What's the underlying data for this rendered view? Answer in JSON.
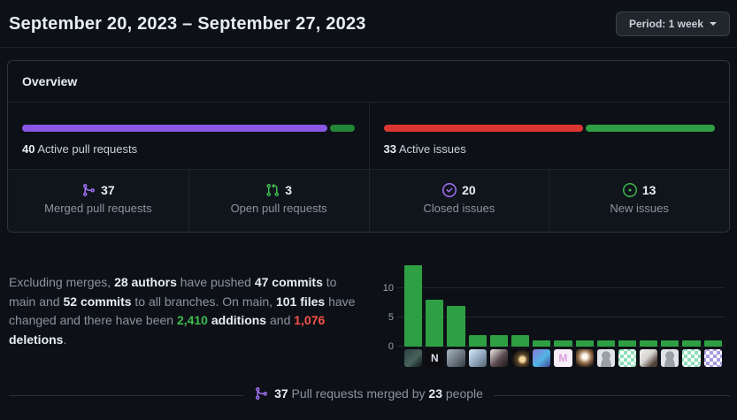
{
  "header": {
    "title": "September 20, 2023 – September 27, 2023",
    "period_button_label": "Period: 1 week"
  },
  "overview": {
    "title": "Overview",
    "pr_bar": {
      "count": "40",
      "label": "Active pull requests",
      "segments": [
        {
          "name": "merged",
          "color": "#8957e5",
          "pct": 92.5
        },
        {
          "name": "open",
          "color": "#238636",
          "pct": 7.5
        }
      ]
    },
    "issue_bar": {
      "count": "33",
      "label": "Active issues",
      "segments": [
        {
          "name": "closed",
          "color": "#da3633",
          "pct": 60.6
        },
        {
          "name": "new",
          "color": "#2ea043",
          "pct": 39.4
        }
      ]
    },
    "stats": [
      {
        "icon": "git-merge-icon",
        "color": "#a371f7",
        "value": "37",
        "label": "Merged pull requests"
      },
      {
        "icon": "git-pull-request-icon",
        "color": "#3fb950",
        "value": "3",
        "label": "Open pull requests"
      },
      {
        "icon": "issue-closed-icon",
        "color": "#a371f7",
        "value": "20",
        "label": "Closed issues"
      },
      {
        "icon": "issue-opened-icon",
        "color": "#3fb950",
        "value": "13",
        "label": "New issues"
      }
    ]
  },
  "summary": {
    "segments": [
      {
        "text": "Excluding merges, "
      },
      {
        "text": "28 authors",
        "bold": true
      },
      {
        "text": " have pushed "
      },
      {
        "text": "47 commits",
        "bold": true
      },
      {
        "text": " to main and "
      },
      {
        "text": "52 commits",
        "bold": true
      },
      {
        "text": " to all branches. On main, "
      },
      {
        "text": "101 files",
        "bold": true
      },
      {
        "text": " have changed and there have been "
      },
      {
        "text": "2,410",
        "bold": true,
        "color": "#3fb950"
      },
      {
        "text": " "
      },
      {
        "text": "additions",
        "bold": true
      },
      {
        "text": " and "
      },
      {
        "text": "1,076",
        "bold": true,
        "color": "#f85149"
      },
      {
        "text": " "
      },
      {
        "text": "deletions",
        "bold": true
      },
      {
        "text": "."
      }
    ]
  },
  "chart_data": {
    "type": "bar",
    "title": "",
    "xlabel": "",
    "ylabel": "",
    "categories": [
      "portrait-photo",
      "letter-N-logo",
      "gray-portrait-photo",
      "hooded-person-photo",
      "portrait-photo",
      "night-moon-photo",
      "person-colorful-hat",
      "pink-M-avatar",
      "bright-light-photo",
      "default-octocat",
      "green-identicon",
      "portrait-photo",
      "default-octocat",
      "green-identicon",
      "purple-identicon"
    ],
    "values": [
      14,
      8,
      7,
      2,
      2,
      2,
      1,
      1,
      1,
      1,
      1,
      1,
      1,
      1,
      1
    ],
    "yticks": [
      0,
      5,
      10
    ],
    "ylim": [
      0,
      15
    ],
    "grid": true,
    "bar_color": "#2ea043",
    "avatars": [
      {
        "name": "portrait-photo",
        "css": "linear-gradient(135deg,#2b3f44,#48645b 55%,#101619)"
      },
      {
        "name": "letter-N-logo",
        "css": "#0d0d10",
        "text": "N",
        "fg": "#d7dee8"
      },
      {
        "name": "gray-portrait-photo",
        "css": "linear-gradient(135deg,#aab6c2,#667079 60%,#343b41)"
      },
      {
        "name": "hooded-person-photo",
        "css": "linear-gradient(135deg,#dce9f5,#93abc2 50%,#51616f)"
      },
      {
        "name": "portrait-photo",
        "css": "linear-gradient(135deg,#f1ece7,#5a4a50 55%,#1a1416)"
      },
      {
        "name": "night-moon-photo",
        "css": "radial-gradient(circle at 62% 58%,#f5d9a0 0 16%,#5a4326 34%,#0b0b0e 72%)"
      },
      {
        "name": "person-colorful-hat",
        "css": "linear-gradient(135deg,#8a79d8,#53b5e4 55%,#41459a)"
      },
      {
        "name": "pink-M-avatar",
        "css": "#f7eef8",
        "text": "M",
        "fg": "#df9fdc"
      },
      {
        "name": "bright-light-photo",
        "css": "radial-gradient(circle at 50% 42%,#fdf8ec 0 18%,#96704d 48%,#241a14 82%)"
      },
      {
        "name": "default-octocat",
        "css": "radial-gradient(circle at 50% 36%,#9aa0a6 0 30%,transparent 31%),radial-gradient(ellipse at 50% 105%,#9aa0a6 0 42%,transparent 43%),#e1e4e8"
      },
      {
        "name": "green-identicon",
        "css": "conic-gradient(#8fe0b9 0 25%,transparent 0 50%,#8fe0b9 0 75%,transparent 0) 2px 2px/8px 8px repeat, #ffffff"
      },
      {
        "name": "portrait-photo",
        "css": "linear-gradient(135deg,#f2f2f2,#d6d4d2 45%,#514139 80%)"
      },
      {
        "name": "default-octocat",
        "css": "radial-gradient(circle at 50% 36%,#9aa0a6 0 30%,transparent 31%),radial-gradient(ellipse at 50% 105%,#9aa0a6 0 42%,transparent 43%),#e1e4e8"
      },
      {
        "name": "green-identicon",
        "css": "conic-gradient(#8fe0b9 0 25%,transparent 0 50%,#8fe0b9 0 75%,transparent 0) 2px 2px/8px 8px repeat, #ffffff"
      },
      {
        "name": "purple-identicon",
        "css": "conic-gradient(#a79ae2 0 25%,transparent 0 50%,#a79ae2 0 75%,transparent 0) 2px 2px/8px 8px repeat, #ffffff"
      }
    ]
  },
  "footer": {
    "segments": [
      {
        "text": "37",
        "bold": true
      },
      {
        "text": " Pull requests merged by "
      },
      {
        "text": "23",
        "bold": true
      },
      {
        "text": " people"
      }
    ]
  }
}
